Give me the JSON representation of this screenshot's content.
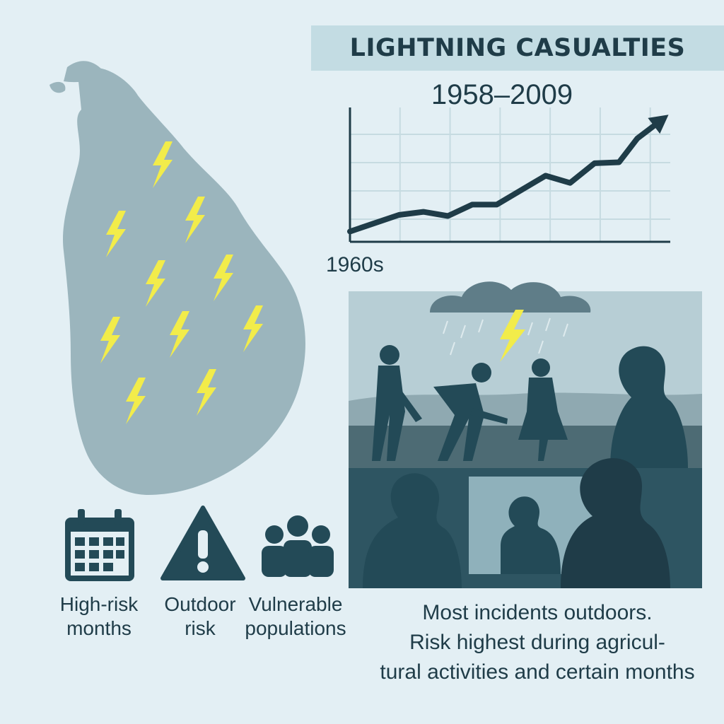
{
  "chart_data": {
    "type": "line",
    "title": "LIGHTNING CASUALTIES",
    "subtitle": "1958–2009",
    "x_start_label": "1960s",
    "x": [
      1958,
      1962,
      1966,
      1970,
      1974,
      1978,
      1982,
      1986,
      1990,
      1994,
      1998,
      2002,
      2005,
      2009
    ],
    "values": [
      1.0,
      1.8,
      2.6,
      2.9,
      2.5,
      3.6,
      3.6,
      5.0,
      6.4,
      5.7,
      7.6,
      7.7,
      10.0,
      11.8
    ],
    "ylim": [
      0,
      13
    ],
    "grid": true,
    "trend_arrow": true,
    "line_color": "#1f3c48"
  },
  "colors": {
    "background": "#e3eff4",
    "map": "#9bb5bd",
    "bolt": "#f2ec4a",
    "dark": "#234a57",
    "title_band": "#c3dce3"
  },
  "stats": [
    {
      "icon": "calendar-icon",
      "label_line1": "High-risk",
      "label_line2": "months"
    },
    {
      "icon": "warning-icon",
      "label_line1": "Outdoor",
      "label_line2": "risk"
    },
    {
      "icon": "people-icon",
      "label_line1": "Vulnerable",
      "label_line2": "populations"
    }
  ],
  "caption": {
    "line1": "Most incidents outdoors.",
    "line2": "Risk highest during agricul-",
    "line3": "tural activities and certain months"
  }
}
